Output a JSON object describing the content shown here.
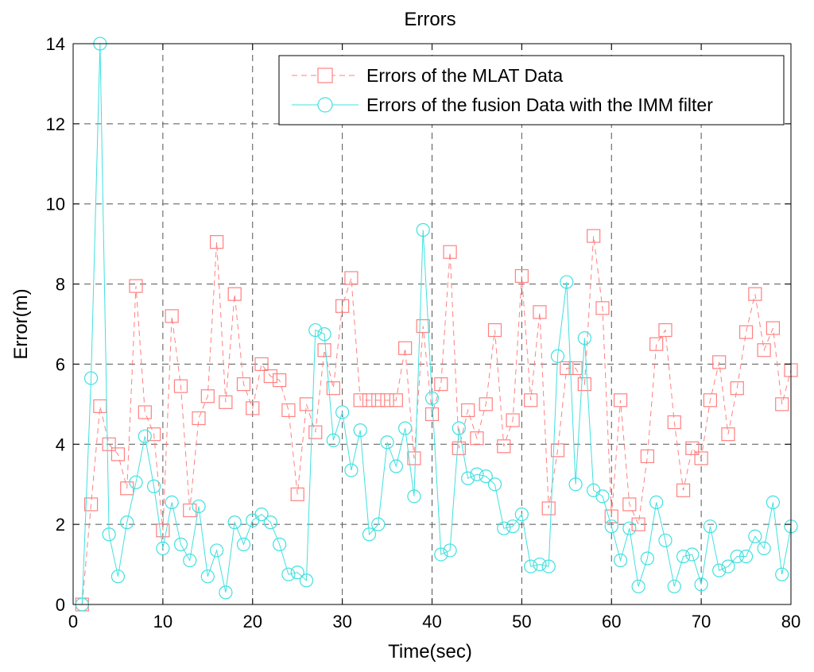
{
  "chart_data": {
    "type": "line",
    "title": "Errors",
    "xlabel": "Time(sec)",
    "ylabel": "Error(m)",
    "xlim": [
      0,
      80
    ],
    "ylim": [
      0,
      14
    ],
    "xticks": [
      "0",
      "10",
      "20",
      "30",
      "40",
      "50",
      "60",
      "70",
      "80"
    ],
    "yticks": [
      "0",
      "2",
      "4",
      "6",
      "8",
      "10",
      "12",
      "14"
    ],
    "grid": true,
    "legend_position": "top-right",
    "x": [
      1,
      2,
      3,
      4,
      5,
      6,
      7,
      8,
      9,
      10,
      11,
      12,
      13,
      14,
      15,
      16,
      17,
      18,
      19,
      20,
      21,
      22,
      23,
      24,
      25,
      26,
      27,
      28,
      29,
      30,
      31,
      32,
      33,
      34,
      35,
      36,
      37,
      38,
      39,
      40,
      41,
      42,
      43,
      44,
      45,
      46,
      47,
      48,
      49,
      50,
      51,
      52,
      53,
      54,
      55,
      56,
      57,
      58,
      59,
      60,
      61,
      62,
      63,
      64,
      65,
      66,
      67,
      68,
      69,
      70,
      71,
      72,
      73,
      74,
      75,
      76,
      77,
      78,
      79,
      80
    ],
    "series": [
      {
        "name": "Errors of the MLAT Data",
        "color": "#ff8080",
        "line_style": "dashed",
        "marker": "square",
        "values": [
          0.0,
          2.5,
          4.95,
          4.0,
          3.75,
          2.9,
          7.95,
          4.8,
          4.25,
          1.85,
          7.2,
          5.45,
          2.35,
          4.65,
          5.2,
          9.05,
          5.05,
          7.75,
          5.5,
          4.9,
          6.0,
          5.7,
          5.6,
          4.85,
          2.75,
          5.0,
          4.3,
          6.35,
          5.4,
          7.45,
          8.15,
          5.1,
          5.1,
          5.1,
          5.1,
          5.1,
          6.4,
          3.65,
          6.95,
          4.75,
          5.5,
          8.8,
          3.9,
          4.85,
          4.15,
          5.0,
          6.85,
          3.95,
          4.6,
          8.2,
          5.1,
          7.3,
          2.4,
          3.85,
          5.9,
          5.9,
          5.5,
          9.2,
          7.4,
          2.2,
          5.1,
          2.5,
          2.0,
          3.7,
          6.5,
          6.85,
          4.55,
          2.85,
          3.9,
          3.65,
          5.1,
          6.05,
          4.25,
          5.4,
          6.8,
          7.75,
          6.35,
          6.9,
          5.0,
          5.85
        ]
      },
      {
        "name": "Errors of the fusion Data with the IMM filter",
        "color": "#40e0e0",
        "line_style": "solid",
        "marker": "circle",
        "values": [
          0.0,
          5.65,
          14.0,
          1.75,
          0.7,
          2.05,
          3.05,
          4.2,
          2.95,
          1.4,
          2.55,
          1.5,
          1.1,
          2.45,
          0.7,
          1.35,
          0.3,
          2.05,
          1.5,
          2.1,
          2.25,
          2.05,
          1.5,
          0.75,
          0.8,
          0.6,
          6.85,
          6.75,
          4.1,
          4.8,
          3.35,
          4.35,
          1.75,
          2.0,
          4.05,
          3.45,
          4.4,
          2.7,
          9.35,
          5.15,
          1.25,
          1.35,
          4.4,
          3.15,
          3.25,
          3.2,
          3.0,
          1.9,
          1.95,
          2.25,
          0.95,
          1.0,
          0.95,
          6.2,
          8.05,
          3.0,
          6.65,
          2.85,
          2.7,
          1.95,
          1.1,
          1.9,
          0.45,
          1.15,
          2.55,
          1.6,
          0.45,
          1.2,
          1.25,
          0.5,
          1.95,
          0.85,
          0.95,
          1.2,
          1.2,
          1.7,
          1.4,
          2.55,
          0.75,
          1.95
        ]
      }
    ]
  }
}
